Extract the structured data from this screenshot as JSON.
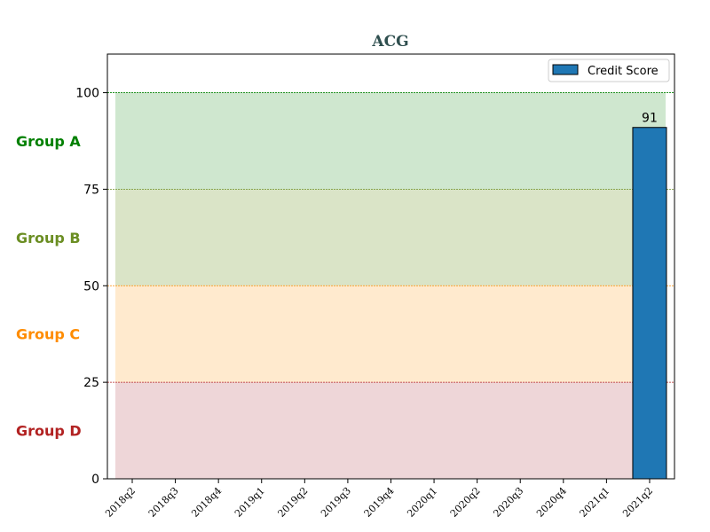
{
  "chart_data": {
    "type": "bar",
    "title": "ACG",
    "xlabel": "",
    "ylabel": "",
    "categories": [
      "2018q2",
      "2018q3",
      "2018q4",
      "2019q1",
      "2019q2",
      "2019q3",
      "2019q4",
      "2020q1",
      "2020q2",
      "2020q3",
      "2020q4",
      "2021q1",
      "2021q2"
    ],
    "series": [
      {
        "name": "Credit Score",
        "values": [
          null,
          null,
          null,
          null,
          null,
          null,
          null,
          null,
          null,
          null,
          null,
          null,
          91
        ],
        "color": "#1f77b4"
      }
    ],
    "data_labels": [
      "",
      "",
      "",
      "",
      "",
      "",
      "",
      "",
      "",
      "",
      "",
      "",
      "91"
    ],
    "ylim": [
      0,
      110
    ],
    "yticks": [
      0,
      25,
      50,
      75,
      100
    ],
    "grid": false,
    "legend": {
      "position": "top-right",
      "label": "Credit Score"
    },
    "bands": [
      {
        "name": "Group A",
        "from": 75,
        "to": 100,
        "fill": "#9fd09f",
        "label_color": "#008000",
        "line_color": "#008000"
      },
      {
        "name": "Group B",
        "from": 50,
        "to": 75,
        "fill": "#b5c98f",
        "label_color": "#6b8e23",
        "line_color": "#6b8e23"
      },
      {
        "name": "Group C",
        "from": 25,
        "to": 50,
        "fill": "#ffd59e",
        "label_color": "#ff8c00",
        "line_color": "#ff8c00"
      },
      {
        "name": "Group D",
        "from": 0,
        "to": 25,
        "fill": "#deaeb2",
        "label_color": "#b22222",
        "line_color": "#b22222"
      }
    ]
  }
}
